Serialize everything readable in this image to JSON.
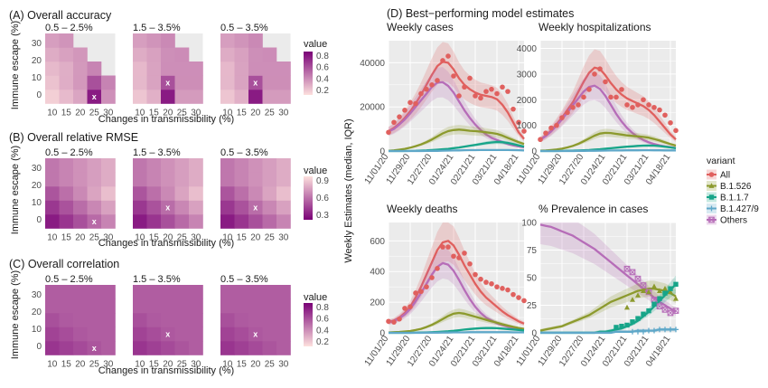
{
  "colors": {
    "panel_bg": "#ebebeb",
    "grid": "#ffffff",
    "text": "#1a1a1a",
    "axis_text": "#4d4d4d",
    "all": "#e0605e",
    "b1526": "#8c9a2d",
    "b117": "#17a589",
    "b1427": "#5fa8c9",
    "others": "#b66db8"
  },
  "heatmaps": {
    "ylabel": "Immune escape (%)",
    "xlabel": "Changes in transmissibility (%)",
    "x_ticks": [
      "10",
      "15",
      "20",
      "25",
      "30"
    ],
    "y_ticks": [
      "0",
      "10",
      "20",
      "30"
    ],
    "legend_title": "value",
    "marker": "x",
    "panels": [
      {
        "title": "(A) Overall accuracy",
        "palette": "accuracy",
        "legend_ticks": [
          "0.8",
          "0.6",
          "0.4",
          "0.2"
        ],
        "subplots": [
          {
            "subtitle": "0.5 – 2.5%",
            "best": [
              25,
              0
            ]
          },
          {
            "subtitle": "1.5 – 3.5%",
            "best": [
              20,
              5
            ]
          },
          {
            "subtitle": "0.5 – 3.5%",
            "best": [
              20,
              5
            ]
          }
        ]
      },
      {
        "title": "(B) Overall relative RMSE",
        "palette": "rmse",
        "legend_ticks": [
          "0.9",
          "0.6",
          "0.3"
        ],
        "subplots": [
          {
            "subtitle": "0.5 – 2.5%",
            "best": [
              25,
              0
            ]
          },
          {
            "subtitle": "1.5 – 3.5%",
            "best": [
              20,
              5
            ]
          },
          {
            "subtitle": "0.5 – 3.5%",
            "best": [
              20,
              5
            ]
          }
        ]
      },
      {
        "title": "(C) Overall correlation",
        "palette": "correlation",
        "legend_ticks": [
          "0.8",
          "0.6",
          "0.4",
          "0.2"
        ],
        "subplots": [
          {
            "subtitle": "0.5 – 2.5%",
            "best": [
              25,
              0
            ]
          },
          {
            "subtitle": "1.5 – 3.5%",
            "best": [
              20,
              5
            ]
          },
          {
            "subtitle": "0.5 – 3.5%",
            "best": [
              20,
              5
            ]
          }
        ]
      }
    ]
  },
  "chart_data": {
    "type": "line",
    "title": "(D) Best−performing model estimates",
    "ylabel": "Weekly Estimates (median, IQR)",
    "x_tick_labels": [
      "11/01/20",
      "11/29/20",
      "12/27/20",
      "01/24/21",
      "02/21/21",
      "03/21/21",
      "04/18/21"
    ],
    "x_week_range": [
      0,
      25
    ],
    "legend": {
      "title": "variant",
      "placement": "right",
      "items": [
        {
          "label": "All",
          "color_key": "all",
          "shape": "circle"
        },
        {
          "label": "B.1.526",
          "color_key": "b1526",
          "shape": "triangle"
        },
        {
          "label": "B.1.1.7",
          "color_key": "b117",
          "shape": "square"
        },
        {
          "label": "B.1.427/9",
          "color_key": "b1427",
          "shape": "plus"
        },
        {
          "label": "Others",
          "color_key": "others",
          "shape": "square-x"
        }
      ]
    },
    "panels": [
      {
        "title": "Weekly cases",
        "ylim": [
          0,
          50000
        ],
        "y_ticks": [
          0,
          20000,
          40000
        ],
        "y_tick_labels": [
          "0",
          "20000",
          "40000"
        ],
        "observed_all": [
          8500,
          13000,
          15500,
          18500,
          22000,
          21500,
          26000,
          28000,
          30000,
          32000,
          41000,
          43000,
          34000,
          25000,
          29000,
          33000,
          25000,
          24000,
          27000,
          28000,
          26000,
          29000,
          27000,
          19000,
          13000,
          9000
        ],
        "series": [
          {
            "name": "All",
            "values": [
              9000,
              10500,
              12500,
              15000,
              18000,
              21500,
              25500,
              30000,
              34500,
              38500,
              40500,
              40000,
              37000,
              33000,
              30000,
              28000,
              26500,
              25500,
              25000,
              24500,
              23500,
              21000,
              17500,
              13000,
              8500,
              5500
            ]
          },
          {
            "name": "Others",
            "values": [
              8800,
              10000,
              12000,
              14300,
              17000,
              20000,
              23000,
              26000,
              29000,
              31000,
              31200,
              29500,
              26500,
              22500,
              18500,
              15000,
              12000,
              9500,
              7500,
              6000,
              5000,
              4000,
              3200,
              2600,
              2100,
              1700
            ]
          },
          {
            "name": "B.1.526",
            "values": [
              100,
              300,
              600,
              1000,
              1500,
              2200,
              3000,
              4000,
              5200,
              6600,
              8000,
              9000,
              9500,
              9700,
              9500,
              9200,
              9000,
              8800,
              8500,
              8200,
              7800,
              7000,
              6000,
              5000,
              4000,
              3200
            ]
          },
          {
            "name": "B.1.1.7",
            "values": [
              0,
              0,
              0,
              0,
              50,
              100,
              200,
              300,
              450,
              600,
              800,
              1000,
              1300,
              1600,
              2000,
              2400,
              2800,
              3200,
              3600,
              3900,
              4100,
              4000,
              3700,
              3200,
              2600,
              2000
            ]
          },
          {
            "name": "B.1.427/9",
            "values": [
              0,
              0,
              0,
              0,
              0,
              0,
              0,
              50,
              80,
              100,
              150,
              200,
              250,
              300,
              350,
              400,
              420,
              440,
              460,
              470,
              470,
              460,
              440,
              400,
              350,
              300
            ]
          }
        ]
      },
      {
        "title": "Weekly hospitalizations",
        "ylim": [
          0,
          4300
        ],
        "y_ticks": [
          0,
          1000,
          2000,
          3000,
          4000
        ],
        "y_tick_labels": [
          "0",
          "1000",
          "2000",
          "3000",
          "4000"
        ],
        "observed_all": [
          450,
          700,
          900,
          1000,
          1300,
          1500,
          1700,
          1800,
          2100,
          2400,
          3000,
          3200,
          2700,
          2100,
          2100,
          2400,
          1800,
          1700,
          1800,
          2000,
          1800,
          1700,
          1600,
          1400,
          1100,
          800
        ],
        "series": [
          {
            "name": "All",
            "values": [
              450,
              600,
              800,
              1050,
              1300,
              1600,
              1900,
              2300,
              2700,
              3050,
              3250,
              3200,
              2950,
              2650,
              2400,
              2200,
              2050,
              1950,
              1850,
              1750,
              1600,
              1400,
              1150,
              900,
              650,
              450
            ]
          },
          {
            "name": "Others",
            "values": [
              440,
              580,
              760,
              990,
              1230,
              1500,
              1780,
              2050,
              2320,
              2500,
              2550,
              2420,
              2150,
              1800,
              1450,
              1150,
              900,
              700,
              550,
              430,
              340,
              270,
              220,
              180,
              150,
              120
            ]
          },
          {
            "name": "B.1.526",
            "values": [
              10,
              20,
              40,
              60,
              90,
              140,
              200,
              280,
              380,
              490,
              600,
              680,
              710,
              700,
              670,
              640,
              610,
              590,
              570,
              550,
              520,
              470,
              410,
              340,
              270,
              210
            ]
          },
          {
            "name": "B.1.1.7",
            "values": [
              0,
              0,
              0,
              0,
              5,
              10,
              15,
              20,
              30,
              40,
              55,
              70,
              90,
              110,
              130,
              150,
              170,
              185,
              200,
              210,
              215,
              210,
              195,
              170,
              140,
              110
            ]
          },
          {
            "name": "B.1.427/9",
            "values": [
              0,
              0,
              0,
              0,
              0,
              0,
              0,
              5,
              8,
              10,
              12,
              15,
              18,
              20,
              22,
              25,
              27,
              28,
              29,
              30,
              30,
              29,
              28,
              26,
              23,
              20
            ]
          }
        ]
      },
      {
        "title": "Weekly deaths",
        "ylim": [
          0,
          720
        ],
        "y_ticks": [
          0,
          200,
          400,
          600
        ],
        "y_tick_labels": [
          "0",
          "200",
          "400",
          "600"
        ],
        "observed_all": [
          75,
          70,
          90,
          160,
          170,
          260,
          270,
          300,
          360,
          420,
          560,
          560,
          500,
          490,
          520,
          450,
          380,
          350,
          330,
          320,
          300,
          290,
          280,
          250,
          230,
          210
        ],
        "series": [
          {
            "name": "All",
            "values": [
              70,
              80,
              100,
              130,
              170,
              230,
              300,
              380,
              460,
              540,
              590,
              600,
              570,
              510,
              440,
              380,
              320,
              270,
              230,
              200,
              170,
              140,
              115,
              95,
              75,
              60
            ]
          },
          {
            "name": "Others",
            "values": [
              68,
              76,
              94,
              120,
              155,
              205,
              260,
              320,
              380,
              430,
              455,
              445,
              405,
              345,
              280,
              220,
              170,
              130,
              100,
              80,
              62,
              50,
              40,
              32,
              26,
              21
            ]
          },
          {
            "name": "B.1.526",
            "values": [
              2,
              4,
              6,
              9,
              12,
              18,
              26,
              38,
              52,
              70,
              90,
              110,
              125,
              130,
              125,
              115,
              105,
              95,
              85,
              75,
              66,
              56,
              47,
              39,
              32,
              26
            ]
          },
          {
            "name": "B.1.1.7",
            "values": [
              0,
              0,
              0,
              0,
              0,
              1,
              2,
              3,
              4,
              6,
              8,
              10,
              13,
              17,
              21,
              25,
              28,
              30,
              31,
              31,
              30,
              28,
              25,
              22,
              19,
              16
            ]
          },
          {
            "name": "B.1.427/9",
            "values": [
              0,
              0,
              0,
              0,
              0,
              0,
              0,
              1,
              1,
              1,
              2,
              2,
              3,
              3,
              3,
              4,
              4,
              4,
              4,
              4,
              4,
              4,
              4,
              3,
              3,
              3
            ]
          }
        ]
      },
      {
        "title": "% Prevalence in cases",
        "ylim": [
          0,
          100
        ],
        "y_ticks": [
          0,
          25,
          50,
          75,
          100
        ],
        "y_tick_labels": [
          "0",
          "25",
          "50",
          "75",
          "100"
        ],
        "observed": [
          {
            "name": "Others",
            "values": [
              null,
              null,
              null,
              null,
              null,
              null,
              null,
              null,
              null,
              null,
              null,
              null,
              null,
              null,
              null,
              null,
              58,
              55,
              49,
              43,
              37,
              30,
              24,
              21,
              18,
              20
            ]
          },
          {
            "name": "B.1.526",
            "values": [
              null,
              null,
              null,
              null,
              null,
              null,
              null,
              null,
              null,
              null,
              null,
              null,
              null,
              null,
              null,
              null,
              23,
              30,
              34,
              38,
              37,
              42,
              38,
              40,
              37,
              31
            ]
          },
          {
            "name": "B.1.1.7",
            "values": [
              null,
              null,
              null,
              null,
              null,
              null,
              null,
              null,
              null,
              null,
              null,
              null,
              null,
              null,
              5,
              6,
              7,
              10,
              13,
              17,
              20,
              26,
              31,
              36,
              40,
              44
            ]
          },
          {
            "name": "B.1.427/9",
            "values": [
              null,
              null,
              null,
              null,
              null,
              null,
              null,
              null,
              null,
              null,
              null,
              null,
              null,
              null,
              null,
              null,
              null,
              1,
              1,
              1,
              2,
              2,
              3,
              3,
              3,
              3
            ]
          }
        ],
        "series": [
          {
            "name": "Others",
            "values": [
              98,
              97,
              96,
              94,
              92,
              90,
              88,
              85,
              82,
              79,
              76,
              72,
              68,
              64,
              60,
              56,
              52,
              48,
              44,
              40,
              36,
              32,
              28,
              25,
              22,
              19
            ]
          },
          {
            "name": "B.1.526",
            "values": [
              2,
              3,
              4,
              5,
              6,
              8,
              10,
              12,
              14,
              16,
              19,
              22,
              25,
              28,
              30,
              32,
              34,
              36,
              38,
              39,
              40,
              40,
              39,
              38,
              36,
              33
            ]
          },
          {
            "name": "B.1.1.7",
            "values": [
              0,
              0,
              0,
              0,
              0,
              0,
              0,
              0,
              0,
              0,
              0,
              1,
              1,
              2,
              3,
              4,
              6,
              8,
              11,
              15,
              19,
              24,
              29,
              34,
              39,
              44
            ]
          },
          {
            "name": "B.1.427/9",
            "values": [
              0,
              0,
              0,
              0,
              0,
              0,
              0,
              0,
              0,
              0,
              0,
              0,
              0,
              0,
              1,
              1,
              1,
              1,
              2,
              2,
              2,
              2,
              3,
              3,
              3,
              3
            ]
          }
        ]
      }
    ]
  }
}
